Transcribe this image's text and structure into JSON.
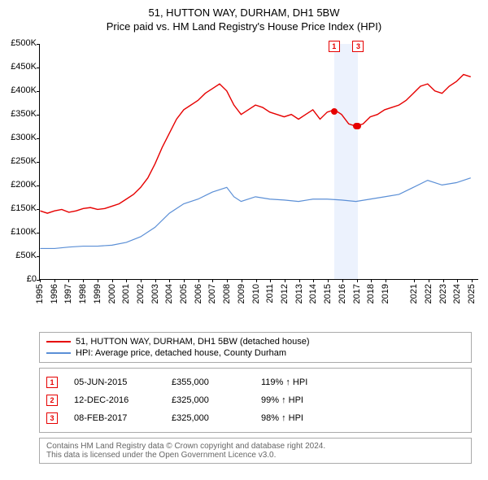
{
  "title": "51, HUTTON WAY, DURHAM, DH1 5BW",
  "subtitle": "Price paid vs. HM Land Registry's House Price Index (HPI)",
  "chart": {
    "type": "line",
    "plot_bg": "#ffffff",
    "x_years": [
      1995,
      1996,
      1997,
      1998,
      1999,
      2000,
      2001,
      2002,
      2003,
      2004,
      2005,
      2006,
      2007,
      2008,
      2009,
      2010,
      2011,
      2012,
      2013,
      2014,
      2015,
      2016,
      2017,
      2018,
      2019,
      2021,
      2022,
      2023,
      2024,
      2025
    ],
    "x_range_years": [
      1995,
      2025.5
    ],
    "ylim": [
      0,
      500000
    ],
    "ytick_step": 50000,
    "ytick_labels": [
      "£0",
      "£50K",
      "£100K",
      "£150K",
      "£200K",
      "£250K",
      "£300K",
      "£350K",
      "£400K",
      "£450K",
      "£500K"
    ],
    "series": [
      {
        "id": "price",
        "color": "#e60000",
        "width": 1.4,
        "label": "51, HUTTON WAY, DURHAM, DH1 5BW (detached house)",
        "points": [
          [
            1995,
            145000
          ],
          [
            1995.5,
            140000
          ],
          [
            1996,
            145000
          ],
          [
            1996.5,
            148000
          ],
          [
            1997,
            142000
          ],
          [
            1997.5,
            145000
          ],
          [
            1998,
            150000
          ],
          [
            1998.5,
            152000
          ],
          [
            1999,
            148000
          ],
          [
            1999.5,
            150000
          ],
          [
            2000,
            155000
          ],
          [
            2000.5,
            160000
          ],
          [
            2001,
            170000
          ],
          [
            2001.5,
            180000
          ],
          [
            2002,
            195000
          ],
          [
            2002.5,
            215000
          ],
          [
            2003,
            245000
          ],
          [
            2003.5,
            280000
          ],
          [
            2004,
            310000
          ],
          [
            2004.5,
            340000
          ],
          [
            2005,
            360000
          ],
          [
            2005.5,
            370000
          ],
          [
            2006,
            380000
          ],
          [
            2006.5,
            395000
          ],
          [
            2007,
            405000
          ],
          [
            2007.5,
            415000
          ],
          [
            2008,
            400000
          ],
          [
            2008.5,
            370000
          ],
          [
            2009,
            350000
          ],
          [
            2009.5,
            360000
          ],
          [
            2010,
            370000
          ],
          [
            2010.5,
            365000
          ],
          [
            2011,
            355000
          ],
          [
            2011.5,
            350000
          ],
          [
            2012,
            345000
          ],
          [
            2012.5,
            350000
          ],
          [
            2013,
            340000
          ],
          [
            2013.5,
            350000
          ],
          [
            2014,
            360000
          ],
          [
            2014.5,
            340000
          ],
          [
            2015,
            355000
          ],
          [
            2015.5,
            360000
          ],
          [
            2016,
            350000
          ],
          [
            2016.5,
            330000
          ],
          [
            2017,
            325000
          ],
          [
            2017.5,
            330000
          ],
          [
            2018,
            345000
          ],
          [
            2018.5,
            350000
          ],
          [
            2019,
            360000
          ],
          [
            2019.5,
            365000
          ],
          [
            2020,
            370000
          ],
          [
            2020.5,
            380000
          ],
          [
            2021,
            395000
          ],
          [
            2021.5,
            410000
          ],
          [
            2022,
            415000
          ],
          [
            2022.5,
            400000
          ],
          [
            2023,
            395000
          ],
          [
            2023.5,
            410000
          ],
          [
            2024,
            420000
          ],
          [
            2024.5,
            435000
          ],
          [
            2025,
            430000
          ]
        ]
      },
      {
        "id": "hpi",
        "color": "#5b8fd6",
        "width": 1.2,
        "label": "HPI: Average price, detached house, County Durham",
        "points": [
          [
            1995,
            65000
          ],
          [
            1996,
            65000
          ],
          [
            1997,
            68000
          ],
          [
            1998,
            70000
          ],
          [
            1999,
            70000
          ],
          [
            2000,
            72000
          ],
          [
            2001,
            78000
          ],
          [
            2002,
            90000
          ],
          [
            2003,
            110000
          ],
          [
            2004,
            140000
          ],
          [
            2005,
            160000
          ],
          [
            2006,
            170000
          ],
          [
            2007,
            185000
          ],
          [
            2008,
            195000
          ],
          [
            2008.5,
            175000
          ],
          [
            2009,
            165000
          ],
          [
            2010,
            175000
          ],
          [
            2011,
            170000
          ],
          [
            2012,
            168000
          ],
          [
            2013,
            165000
          ],
          [
            2014,
            170000
          ],
          [
            2015,
            170000
          ],
          [
            2016,
            168000
          ],
          [
            2017,
            165000
          ],
          [
            2018,
            170000
          ],
          [
            2019,
            175000
          ],
          [
            2020,
            180000
          ],
          [
            2021,
            195000
          ],
          [
            2022,
            210000
          ],
          [
            2023,
            200000
          ],
          [
            2024,
            205000
          ],
          [
            2025,
            215000
          ]
        ]
      }
    ],
    "shaded_ranges": [
      {
        "from": 2015.43,
        "to": 2016.95
      },
      {
        "from": 2016.95,
        "to": 2017.11
      }
    ],
    "top_markers": [
      {
        "num": "1",
        "year": 2015.43,
        "color": "#e60000"
      },
      {
        "num": "3",
        "year": 2017.11,
        "color": "#e60000"
      }
    ],
    "data_dots": [
      {
        "year": 2015.43,
        "value": 355000,
        "color": "#e60000"
      },
      {
        "year": 2016.95,
        "value": 325000,
        "color": "#e60000"
      },
      {
        "year": 2017.11,
        "value": 325000,
        "color": "#e60000"
      }
    ]
  },
  "legend": {
    "items": [
      {
        "color": "#e60000",
        "label_path": "chart.series.0.label"
      },
      {
        "color": "#5b8fd6",
        "label_path": "chart.series.1.label"
      }
    ]
  },
  "transactions": [
    {
      "num": "1",
      "color": "#e60000",
      "date": "05-JUN-2015",
      "price": "£355,000",
      "pct": "119% ↑ HPI"
    },
    {
      "num": "2",
      "color": "#e60000",
      "date": "12-DEC-2016",
      "price": "£325,000",
      "pct": "99% ↑ HPI"
    },
    {
      "num": "3",
      "color": "#e60000",
      "date": "08-FEB-2017",
      "price": "£325,000",
      "pct": "98% ↑ HPI"
    }
  ],
  "footer": {
    "line1": "Contains HM Land Registry data © Crown copyright and database right 2024.",
    "line2": "This data is licensed under the Open Government Licence v3.0."
  }
}
